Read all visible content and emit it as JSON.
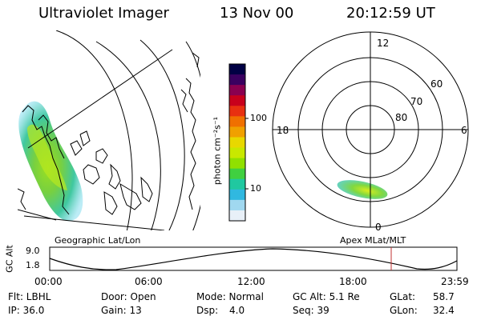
{
  "header": {
    "instrument": "Ultraviolet Imager",
    "date": "13 Nov 00",
    "time": "20:12:59 UT"
  },
  "geo_panel": {
    "caption": "Geographic Lat/Lon"
  },
  "colorbar": {
    "unit_label": "photon cm⁻²s⁻¹",
    "ticks": [
      "100",
      "10"
    ],
    "scale": "log",
    "colors": [
      "#000044",
      "#3a0060",
      "#8a0050",
      "#c8001c",
      "#e83010",
      "#f07000",
      "#f0a000",
      "#e8d800",
      "#c8e800",
      "#90e000",
      "#40d040",
      "#20c8a0",
      "#30b8e0",
      "#a0d8f0",
      "#e8f0f8"
    ]
  },
  "polar_panel": {
    "caption": "Apex MLat/MLT",
    "mlt_labels": [
      "12",
      "18",
      "6",
      "0"
    ],
    "lat_labels": [
      "60",
      "70",
      "80"
    ]
  },
  "altitude_strip": {
    "axis_title": "GC Alt",
    "y_ticks": [
      "9.0",
      "1.8"
    ],
    "x_ticks": [
      "00:00",
      "06:00",
      "12:00",
      "18:00",
      "23:59"
    ],
    "current_time_color": "#c03030"
  },
  "status": {
    "row1": {
      "filter": "Flt: LBHL",
      "door": "Door: Open",
      "mode": "Mode: Normal",
      "gc_alt": "GC Alt: 5.1 Re",
      "glat_label": "GLat:",
      "glat_value": "58.7"
    },
    "row2": {
      "ip": "IP: 36.0",
      "gain": "Gain: 13",
      "dsp_label": "Dsp:",
      "dsp_value": "4.0",
      "seq": "Seq: 39",
      "glon_label": "GLon:",
      "glon_value": "32.4"
    }
  }
}
